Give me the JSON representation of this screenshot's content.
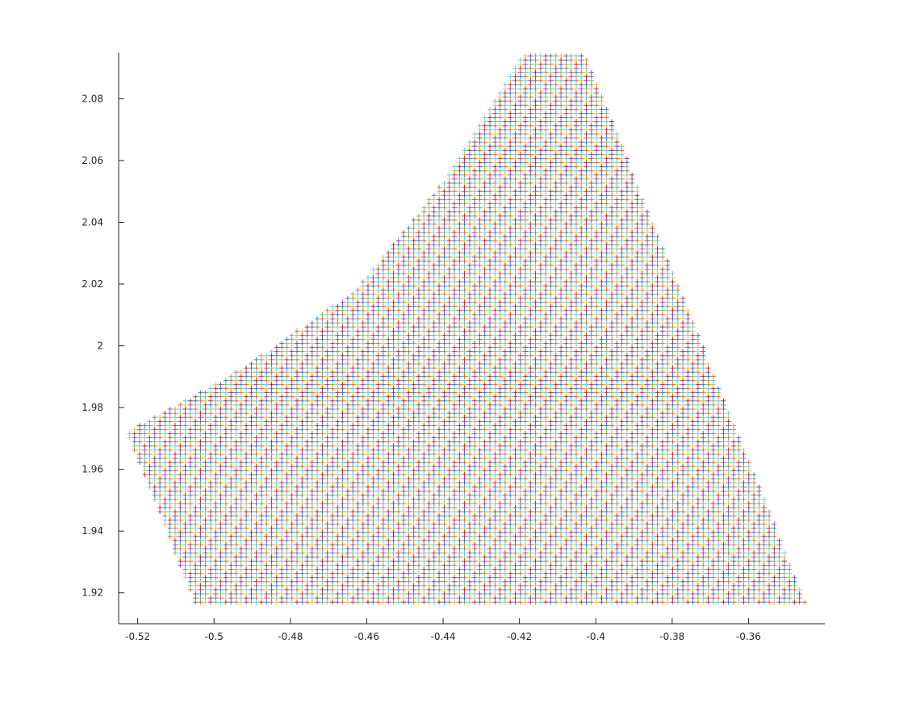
{
  "chart_data": {
    "type": "scatter",
    "title": "",
    "xlabel": "",
    "ylabel": "",
    "xlim": [
      -0.525,
      -0.34
    ],
    "ylim": [
      1.91,
      2.095
    ],
    "xticks": [
      -0.52,
      -0.5,
      -0.48,
      -0.46,
      -0.44,
      -0.42,
      -0.4,
      -0.38,
      -0.36
    ],
    "xtick_labels": [
      "-0.52",
      "-0.5",
      "-0.48",
      "-0.46",
      "-0.44",
      "-0.42",
      "-0.4",
      "-0.38",
      "-0.36"
    ],
    "yticks": [
      1.92,
      1.94,
      1.96,
      1.98,
      2.0,
      2.02,
      2.04,
      2.06,
      2.08
    ],
    "ytick_labels": [
      "1.92",
      "1.94",
      "1.96",
      "1.98",
      "2",
      "2.02",
      "2.04",
      "2.06",
      "2.08"
    ],
    "grid": false,
    "legend": "none",
    "marker": "plus",
    "region_boundary": [
      [
        -0.419,
        2.095
      ],
      [
        -0.403,
        2.095
      ],
      [
        -0.345,
        1.917
      ],
      [
        -0.505,
        1.917
      ],
      [
        -0.523,
        1.972
      ],
      [
        -0.492,
        1.993
      ],
      [
        -0.463,
        2.018
      ],
      [
        -0.44,
        2.053
      ]
    ],
    "grid_step": {
      "x": 0.00133,
      "y": 0.00133
    },
    "point_colors": [
      "#0072bd",
      "#d95319",
      "#edb120",
      "#7e2f8e",
      "#77ac30",
      "#4dbeee",
      "#a2142f"
    ]
  }
}
